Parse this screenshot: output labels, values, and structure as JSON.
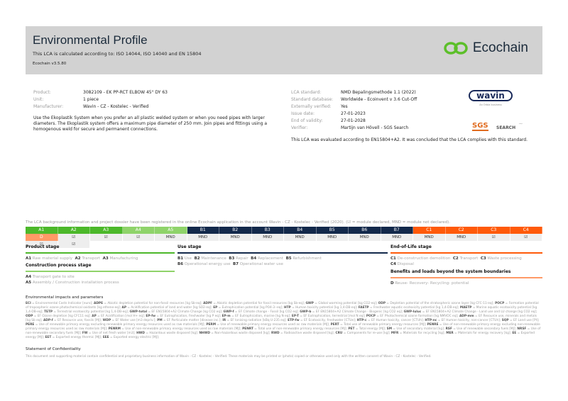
{
  "header": {
    "title": "Environmental Profile",
    "subtitle": "This LCA is calculated according to: ISO 14044, ISO 14040 and EN 15804",
    "version": "Ecochain v3.5.80",
    "logo": "Ecochain",
    "brand_color": "#5cbf2a"
  },
  "product": [
    {
      "k": "Product:",
      "v": "3082109 - EK PP-RCT ELBOW 45° DY 63"
    },
    {
      "k": "Unit:",
      "v": "1 piece"
    },
    {
      "k": "Manufacturer:",
      "v": "Wavin - CZ - Kostelec - Verified"
    }
  ],
  "description": "Use the Ekoplastik System when you prefer an all plastic welded system or when you need pipes with larger diameters. The Ekoplastik system offers a maximum pipe diameter of 250 mm. Join pipes and fittings using a homogenous weld for secure and permanent connections.",
  "lca": [
    {
      "k": "LCA standard:",
      "v": "NMD Bepalingsmethode 1.1 (2022)"
    },
    {
      "k": "Standard database:",
      "v": "Worldwide - Ecoinvent v 3.6 Cut-Off"
    },
    {
      "k": "Externally verified:",
      "v": "Yes"
    },
    {
      "k": "Issue date:",
      "v": "27-01-2023"
    },
    {
      "k": "End of validity:",
      "v": "27-01-2028"
    },
    {
      "k": "Verifier:",
      "v": "Martijn van Hövell - SGS Search"
    }
  ],
  "wavin": {
    "logo": "wavin",
    "tag": "An Orbia business"
  },
  "sgs": {
    "logo": "SGS",
    "search": "SEARCH"
  },
  "conclusion": "This LCA was evaluated according to EN15804+A2. It was concluded that the LCA complies with this standard.",
  "registration": "The LCA background information and project dossier have been registered in the online Ecochain application in the account Wavin - CZ - Kostelec - Verified (2020). (☑ = module declared, MND = module not declared).",
  "modules": [
    {
      "code": "A1",
      "value": "☑",
      "color": "#4cb82a"
    },
    {
      "code": "A2",
      "value": "☑",
      "color": "#4cb82a"
    },
    {
      "code": "A3",
      "value": "☑",
      "color": "#4cb82a"
    },
    {
      "code": "A4",
      "value": "MND",
      "color": "#8fd36a"
    },
    {
      "code": "A5",
      "value": "MND",
      "color": "#8fd36a"
    },
    {
      "code": "B1",
      "value": "MND",
      "color": "#13294b"
    },
    {
      "code": "B2",
      "value": "MND",
      "color": "#13294b"
    },
    {
      "code": "B3",
      "value": "MND",
      "color": "#13294b"
    },
    {
      "code": "B4",
      "value": "MND",
      "color": "#13294b"
    },
    {
      "code": "B5",
      "value": "MND",
      "color": "#13294b"
    },
    {
      "code": "B6",
      "value": "MND",
      "color": "#13294b"
    },
    {
      "code": "B7",
      "value": "MND",
      "color": "#13294b"
    },
    {
      "code": "C1",
      "value": "MND",
      "color": "#ff5a0a"
    },
    {
      "code": "C2",
      "value": "☑",
      "color": "#ff5a0a"
    },
    {
      "code": "C3",
      "value": "☑",
      "color": "#ff5a0a"
    },
    {
      "code": "C4",
      "value": "☑",
      "color": "#ff5a0a"
    },
    {
      "code": "D",
      "value": "☑",
      "color": "#ff9a66"
    }
  ],
  "stages": {
    "product": {
      "title": "Product stage",
      "items": [
        [
          "A1",
          "Raw material supply"
        ],
        [
          "A2",
          "Transport"
        ],
        [
          "A3",
          "Manufacturing"
        ]
      ]
    },
    "construction": {
      "title": "Construction process stage",
      "items": [
        [
          "A4",
          "Transport gate to site"
        ],
        [
          "A5",
          "Assembly / Construction installation process"
        ]
      ]
    },
    "use": {
      "title": "Use stage",
      "items": [
        [
          "B1",
          "Use"
        ],
        [
          "B2",
          "Maintenance"
        ],
        [
          "B3",
          "Repair"
        ],
        [
          "B4",
          "Replacement"
        ],
        [
          "B5",
          "Refurbishment"
        ],
        [
          "B6",
          "Operational energy use"
        ],
        [
          "B7",
          "Operational water use"
        ]
      ]
    },
    "eol": {
      "title": "End-of-Life stage",
      "items": [
        [
          "C1",
          "De-construction demolition"
        ],
        [
          "C2",
          "Transport"
        ],
        [
          "C3",
          "Waste processing"
        ],
        [
          "C4",
          "Disposal"
        ]
      ]
    },
    "benefits": {
      "title": "Benefits and loads beyond the system boundaries",
      "items": [
        [
          "D",
          "Reuse- Recovery- Recycling- potential"
        ]
      ]
    }
  },
  "impacts": {
    "title": "Environmental impacts and parameters",
    "items": [
      [
        "ECI",
        "Environmental Costs Indicator [euro]"
      ],
      [
        "ADPE",
        "Abiotic depletion potential for non-fossil resources [kg Sb-eq]"
      ],
      [
        "ADPF",
        "Abiotic depletion potential for fossil resources [kg Sb-eq]"
      ],
      [
        "GWP",
        "Global warming potential [kg CO2-eq]"
      ],
      [
        "ODP",
        "Depletion potential of the stratospheric ozone layer [kg CFC-11-eq]"
      ],
      [
        "POCP",
        "Formation potential of tropospheric ozone photochemical oxidants [kg ethene-eq]"
      ],
      [
        "AP",
        "Acidification potential of land and water [kg SO2-eq]"
      ],
      [
        "EP",
        "Eutrophication potential [kg PO4-3--eq]"
      ],
      [
        "HTP",
        "Human toxicity potential [kg 1,4-DB-eq]"
      ],
      [
        "FAETP",
        "Freshwater aquatic ecotoxicity potential [kg 1,4-DB-eq]"
      ],
      [
        "MAETP",
        "Marine aquatic ecotoxicity potential [kg 1,4-DB-eq]"
      ],
      [
        "TETP",
        "Terrestrial ecotoxicity potential [kg 1,4-DB-eq]"
      ],
      [
        "GWP-total",
        "EF EN15804+A2 Climate Change [kg CO2 eq]"
      ],
      [
        "GWP-f",
        "EF Climate change - Fossil [kg CO2 eq]"
      ],
      [
        "GWP-b",
        "EF EN15804+A2 Climate Change - Biogenic [kg CO2 eq]"
      ],
      [
        "GWP-luluc",
        "EF EN15804+A2 Climate Change - Land use and LU change [kg CO2 eq]"
      ],
      [
        "ODP",
        "EF Ozone depletion [kg CFC11 eq]"
      ],
      [
        "AP",
        "EF Acidification [mol H+ eq]"
      ],
      [
        "EP-fw",
        "EF Eutrophication, freshwater [kg P eq]"
      ],
      [
        "EP-m",
        "EF Eutrophication, marine [kg N eq]"
      ],
      [
        "EP-T",
        "EF Eutrophication, terrestrial [mol N eq]"
      ],
      [
        "POCP",
        "EF Photochemical ozone formation [kg NMVOC eq]"
      ],
      [
        "ADP-mm",
        "EF Resource use, minerals and metals [kg Sb eq]"
      ],
      [
        "ADP-f",
        "EF Resource use, fossils [MJ]"
      ],
      [
        "WDP",
        "EF Water use [m3 depriv.]"
      ],
      [
        "PM",
        "EF Particulate matter [disease inc.]"
      ],
      [
        "IR",
        "EF Ionising radiation [kBq U-235 eq]"
      ],
      [
        "ETP-fw",
        "EF Ecotoxicity, freshwater [CTUe]"
      ],
      [
        "HTP-c",
        "EF Human toxicity, cancer [CTUh]"
      ],
      [
        "HTP-nc",
        "EF Human toxicity, non-cancer [CTUh]"
      ],
      [
        "SQP",
        "EF Land use [Pt]"
      ],
      [
        "PERE",
        "Use of renewable primary energy excluding renewable primary energy resources used as raw materials [MJ]"
      ],
      [
        "PERM",
        "Use of renewable primary energy resources used as raw materials [MJ]"
      ],
      [
        "PERT",
        "Total use of renewable primary energy resources [MJ]"
      ],
      [
        "PENRE",
        "Use of non-renewable primary energy excluding non-renewable primary energy resources used as raw materials [MJ]"
      ],
      [
        "PENRM",
        "Use of non-renewable primary energy resources used as raw materials [MJ]"
      ],
      [
        "PENRT",
        "Total use of non-renewable primary energy resources [MJ]"
      ],
      [
        "PET",
        "Total energy [MJ]"
      ],
      [
        "SM",
        "Use of secondary material [kg]"
      ],
      [
        "RSF",
        "Use of renewable secondary fuels [MJ]"
      ],
      [
        "NRSF",
        "Use of non-renewable secondary fuels [MJ]"
      ],
      [
        "FW",
        "Use of net fresh water [m3]"
      ],
      [
        "HWD",
        "Hazardous waste disposed [kg]"
      ],
      [
        "NHWD",
        "Non-hazardous waste disposed [kg]"
      ],
      [
        "RWD",
        "Radioactive waste disposed [kg]"
      ],
      [
        "CRU",
        "Components for re-use [kg]"
      ],
      [
        "MFR",
        "Materials for recycling [kg]"
      ],
      [
        "MER",
        "Materials for energy recovery [kg]"
      ],
      [
        "EE",
        "Exported energy [MJ]"
      ],
      [
        "EET",
        "Exported energy thermic [MJ]"
      ],
      [
        "EEE",
        "Exported energy electric [MJ]"
      ]
    ]
  },
  "confidentiality": {
    "title": "Statement of Confidentiality",
    "text": "This document and supporting material contain confidential and proprietary business information of Wavin - CZ - Kostelec - Verified. These materials may be printed or (photo) copied or otherwise used only with the written consent of Wavin - CZ - Kostelec - Verified."
  }
}
